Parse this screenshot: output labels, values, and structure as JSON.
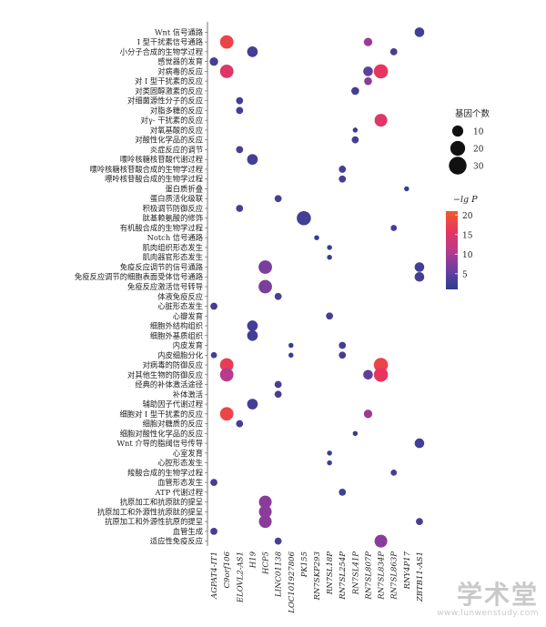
{
  "chart_data": {
    "type": "scatter",
    "genes": [
      "AGPAT4-IT1",
      "C9orf106",
      "ELOVL2-AS1",
      "H19",
      "HCP5",
      "LINC01138",
      "LOC101927806",
      "PK155",
      "RN7SKP293",
      "RN7SL18P",
      "RN7SL254P",
      "RN7SL41P",
      "RN7SL807P",
      "RN7SL834P",
      "RN7SL863P",
      "RNY4P17",
      "ZBTB11-AS1"
    ],
    "pathways": [
      "Wnt 信号通路",
      "I 型干扰素信号通路",
      "小分子合成的生物学过程",
      "感觉器的发育",
      "对病毒的反应",
      "对 I 型干扰素的反应",
      "对类固醇激素的反应",
      "对细菌源性分子的反应",
      "对脂多糖的反应",
      "对γ- 干扰素的反应",
      "对氧基酸的反应",
      "对酸性化学品的反应",
      "炎症反应的调节",
      "嘌呤核糖核苷酸代谢过程",
      "嘌呤核糖核苷酸合成的生物学过程",
      "嘌呤核苷酸合成的生物学过程",
      "蛋白质折叠",
      "蛋白质活化级联",
      "积极调节防御反应",
      "肽基赖氨酸的修饰",
      "有机酸合成的生物学过程",
      "Notch 信号通路",
      "肌肉组织形态发生",
      "肌肉器官形态发生",
      "免疫反应调节的信号通路",
      "免疫反应调节的细胞表面受体信号通路",
      "免疫反应激活信号转导",
      "体液免疫反应",
      "心脏形态发生",
      "心瓣发育",
      "细胞外结构组织",
      "细胞外基质组织",
      "内皮发育",
      "内皮细胞分化",
      "对病毒的防御反应",
      "对其他生物的防御反应",
      "经典的补体激活途径",
      "补体激活",
      "辅助因子代谢过程",
      "细胞对 I 型干扰素的反应",
      "细胞对糖质的反应",
      "细胞对酸性化学品的反应",
      "Wnt 介导的脂阈信号传导",
      "心室发育",
      "心腔形态发生",
      "羧酸合成的生物学过程",
      "血管形态发生",
      "ATP 代谢过程",
      "抗原加工和抗原肽的提呈",
      "抗原加工和外源性抗原肽的提呈",
      "抗原加工和外源性抗原的提呈",
      "血管生成",
      "适应性免疫反应"
    ],
    "points": [
      {
        "gene": "ZBTB11-AS1",
        "pathway": "Wnt 信号通路",
        "count": 7,
        "neglogp": 3
      },
      {
        "gene": "C9orf106",
        "pathway": "I 型干扰素信号通路",
        "count": 16,
        "neglogp": 18
      },
      {
        "gene": "RN7SL807P",
        "pathway": "I 型干扰素信号通路",
        "count": 5,
        "neglogp": 9
      },
      {
        "gene": "H19",
        "pathway": "小分子合成的生物学过程",
        "count": 9,
        "neglogp": 3
      },
      {
        "gene": "RN7SL863P",
        "pathway": "小分子合成的生物学过程",
        "count": 3,
        "neglogp": 3
      },
      {
        "gene": "AGPAT4-IT1",
        "pathway": "感觉器的发育",
        "count": 5,
        "neglogp": 3
      },
      {
        "gene": "C9orf106",
        "pathway": "对病毒的反应",
        "count": 16,
        "neglogp": 15
      },
      {
        "gene": "RN7SL807P",
        "pathway": "对病毒的反应",
        "count": 7,
        "neglogp": 5
      },
      {
        "gene": "RN7SL834P",
        "pathway": "对病毒的反应",
        "count": 18,
        "neglogp": 16
      },
      {
        "gene": "RN7SL807P",
        "pathway": "对 I 型干扰素的反应",
        "count": 4,
        "neglogp": 8
      },
      {
        "gene": "RN7SL41P",
        "pathway": "对类固醇激素的反应",
        "count": 4,
        "neglogp": 3
      },
      {
        "gene": "ELOVL2-AS1",
        "pathway": "对细菌源性分子的反应",
        "count": 3,
        "neglogp": 3
      },
      {
        "gene": "ELOVL2-AS1",
        "pathway": "对脂多糖的反应",
        "count": 3,
        "neglogp": 3
      },
      {
        "gene": "RN7SL834P",
        "pathway": "对γ- 干扰素的反应",
        "count": 14,
        "neglogp": 15
      },
      {
        "gene": "RN7SL41P",
        "pathway": "对氧基酸的反应",
        "count": 1,
        "neglogp": 2
      },
      {
        "gene": "RN7SL41P",
        "pathway": "对酸性化学品的反应",
        "count": 3,
        "neglogp": 3
      },
      {
        "gene": "ELOVL2-AS1",
        "pathway": "炎症反应的调节",
        "count": 3,
        "neglogp": 3
      },
      {
        "gene": "H19",
        "pathway": "嘌呤核糖核苷酸代谢过程",
        "count": 9,
        "neglogp": 3
      },
      {
        "gene": "RN7SL254P",
        "pathway": "嘌呤核糖核苷酸合成的生物学过程",
        "count": 3,
        "neglogp": 3
      },
      {
        "gene": "RN7SL254P",
        "pathway": "嘌呤核苷酸合成的生物学过程",
        "count": 3,
        "neglogp": 3
      },
      {
        "gene": "RNY4P17",
        "pathway": "蛋白质折叠",
        "count": 1,
        "neglogp": 2
      },
      {
        "gene": "LINC01138",
        "pathway": "蛋白质活化级联",
        "count": 3,
        "neglogp": 3
      },
      {
        "gene": "ELOVL2-AS1",
        "pathway": "积极调节防御反应",
        "count": 3,
        "neglogp": 3
      },
      {
        "gene": "PK155",
        "pathway": "肽基赖氨酸的修饰",
        "count": 18,
        "neglogp": 3
      },
      {
        "gene": "RN7SL863P",
        "pathway": "有机酸合成的生物学过程",
        "count": 2,
        "neglogp": 3
      },
      {
        "gene": "RN7SKP293",
        "pathway": "Notch 信号通路",
        "count": 1,
        "neglogp": 2
      },
      {
        "gene": "RN7SL18P",
        "pathway": "肌肉组织形态发生",
        "count": 1,
        "neglogp": 2
      },
      {
        "gene": "RN7SL18P",
        "pathway": "肌肉器官形态发生",
        "count": 1,
        "neglogp": 2
      },
      {
        "gene": "HCP5",
        "pathway": "免疫反应调节的信号通路",
        "count": 16,
        "neglogp": 7
      },
      {
        "gene": "ZBTB11-AS1",
        "pathway": "免疫反应调节的信号通路",
        "count": 7,
        "neglogp": 3
      },
      {
        "gene": "ZBTB11-AS1",
        "pathway": "免疫反应调节的细胞表面受体信号通路",
        "count": 7,
        "neglogp": 3
      },
      {
        "gene": "HCP5",
        "pathway": "免疫反应激活信号转导",
        "count": 16,
        "neglogp": 7
      },
      {
        "gene": "LINC01138",
        "pathway": "体液免疫反应",
        "count": 3,
        "neglogp": 3
      },
      {
        "gene": "AGPAT4-IT1",
        "pathway": "心脏形态发生",
        "count": 3,
        "neglogp": 3
      },
      {
        "gene": "RN7SL18P",
        "pathway": "心瓣发育",
        "count": 3,
        "neglogp": 3
      },
      {
        "gene": "H19",
        "pathway": "细胞外结构组织",
        "count": 9,
        "neglogp": 3
      },
      {
        "gene": "H19",
        "pathway": "细胞外基质组织",
        "count": 9,
        "neglogp": 3
      },
      {
        "gene": "RN7SL254P",
        "pathway": "内皮发育",
        "count": 3,
        "neglogp": 3
      },
      {
        "gene": "LOC101927806",
        "pathway": "内皮发育",
        "count": 1,
        "neglogp": 2
      },
      {
        "gene": "AGPAT4-IT1",
        "pathway": "内皮细胞分化",
        "count": 2,
        "neglogp": 3
      },
      {
        "gene": "LOC101927806",
        "pathway": "内皮细胞分化",
        "count": 1,
        "neglogp": 2
      },
      {
        "gene": "RN7SL254P",
        "pathway": "内皮细胞分化",
        "count": 3,
        "neglogp": 3
      },
      {
        "gene": "C9orf106",
        "pathway": "对病毒的防御反应",
        "count": 16,
        "neglogp": 17
      },
      {
        "gene": "RN7SL834P",
        "pathway": "对病毒的防御反应",
        "count": 18,
        "neglogp": 18
      },
      {
        "gene": "C9orf106",
        "pathway": "对其他生物的防御反应",
        "count": 16,
        "neglogp": 11
      },
      {
        "gene": "RN7SL807P",
        "pathway": "对其他生物的防御反应",
        "count": 7,
        "neglogp": 5
      },
      {
        "gene": "RN7SL834P",
        "pathway": "对其他生物的防御反应",
        "count": 18,
        "neglogp": 16
      },
      {
        "gene": "LINC01138",
        "pathway": "经典的补体激活途径",
        "count": 3,
        "neglogp": 3
      },
      {
        "gene": "LINC01138",
        "pathway": "补体激活",
        "count": 3,
        "neglogp": 3
      },
      {
        "gene": "H19",
        "pathway": "辅助因子代谢过程",
        "count": 9,
        "neglogp": 3
      },
      {
        "gene": "C9orf106",
        "pathway": "细胞对 I 型干扰素的反应",
        "count": 16,
        "neglogp": 18
      },
      {
        "gene": "RN7SL807P",
        "pathway": "细胞对 I 型干扰素的反应",
        "count": 5,
        "neglogp": 9
      },
      {
        "gene": "ELOVL2-AS1",
        "pathway": "细胞对糖质的反应",
        "count": 3,
        "neglogp": 3
      },
      {
        "gene": "RN7SL41P",
        "pathway": "细胞对酸性化学品的反应",
        "count": 1,
        "neglogp": 2
      },
      {
        "gene": "ZBTB11-AS1",
        "pathway": "Wnt 介导的脂阈信号传导",
        "count": 7,
        "neglogp": 3
      },
      {
        "gene": "RN7SL18P",
        "pathway": "心室发育",
        "count": 1,
        "neglogp": 2
      },
      {
        "gene": "RN7SL18P",
        "pathway": "心腔形态发生",
        "count": 1,
        "neglogp": 2
      },
      {
        "gene": "RN7SL863P",
        "pathway": "羧酸合成的生物学过程",
        "count": 2,
        "neglogp": 3
      },
      {
        "gene": "AGPAT4-IT1",
        "pathway": "血管形态发生",
        "count": 3,
        "neglogp": 3
      },
      {
        "gene": "RN7SL254P",
        "pathway": "ATP 代谢过程",
        "count": 3,
        "neglogp": 3
      },
      {
        "gene": "HCP5",
        "pathway": "抗原加工和抗原肽的提呈",
        "count": 14,
        "neglogp": 8
      },
      {
        "gene": "HCP5",
        "pathway": "抗原加工和外源性抗原肽的提呈",
        "count": 14,
        "neglogp": 8
      },
      {
        "gene": "HCP5",
        "pathway": "抗原加工和外源性抗原的提呈",
        "count": 14,
        "neglogp": 8
      },
      {
        "gene": "ZBTB11-AS1",
        "pathway": "抗原加工和外源性抗原的提呈",
        "count": 3,
        "neglogp": 3
      },
      {
        "gene": "AGPAT4-IT1",
        "pathway": "血管生成",
        "count": 3,
        "neglogp": 3
      },
      {
        "gene": "LINC01138",
        "pathway": "适应性免疫反应",
        "count": 3,
        "neglogp": 3
      },
      {
        "gene": "RN7SL834P",
        "pathway": "适应性免疫反应",
        "count": 14,
        "neglogp": 8
      }
    ],
    "size_legend": {
      "title": "基因个数",
      "values": [
        10,
        20,
        30
      ]
    },
    "color_legend": {
      "title": "−lg P",
      "ticks": [
        5,
        10,
        15,
        20
      ],
      "range": [
        1,
        21
      ],
      "colors": [
        "#2b3d8f",
        "#6b3fa0",
        "#b93a8c",
        "#e8355f",
        "#f25a2c"
      ]
    },
    "grid": false
  },
  "watermark": {
    "main": "学术堂",
    "sub": "www.lunwenstudy.com"
  }
}
